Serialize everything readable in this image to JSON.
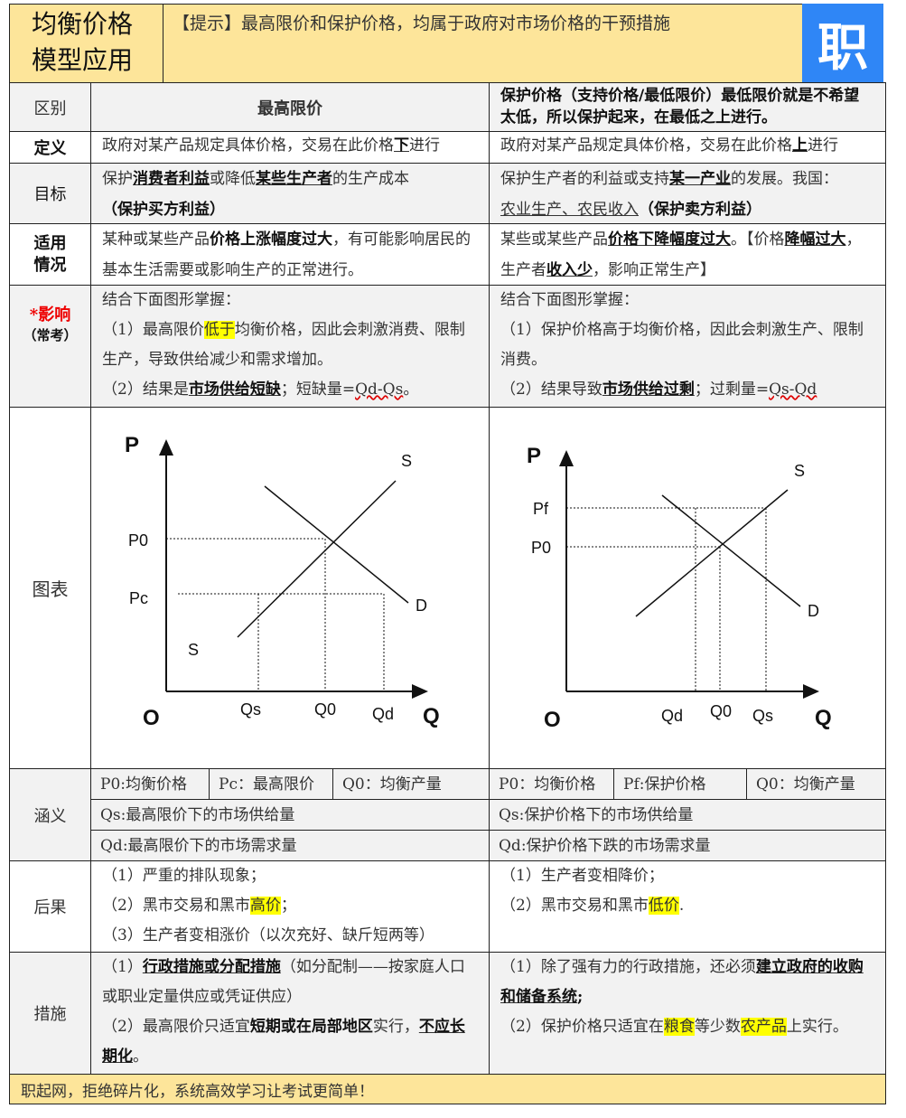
{
  "header": {
    "title_line1": "均衡价格",
    "title_line2": "模型应用",
    "tip": "【提示】最高限价和保护价格，均属于政府对市场价格的干预措施",
    "logo_text": "职",
    "brand_color": "#2f86f6"
  },
  "rows": {
    "head": {
      "label": "区别",
      "col1": "最高限价",
      "col2": "保护价格（支持价格/最低限价）最低限价就是不希望太低，所以保护起来，在最低之上进行。"
    },
    "definition": {
      "label": "定义",
      "col1_a": "政府对某产品规定具体价格，交易在此价格",
      "col1_u": "下",
      "col1_b": "进行",
      "col2_a": "政府对某产品规定具体价格，交易在此价格",
      "col2_u": "上",
      "col2_b": "进行"
    },
    "goal": {
      "label": "目标",
      "c1": [
        "保护",
        "消费者利益",
        "或降低",
        "某些生产者",
        "的生产成本",
        "（保护买方利益）"
      ],
      "c2": [
        "保护生产者的利益或支持",
        "某一产业",
        "的发展。我国：",
        "农业生产、农民收入",
        "（保护卖方利益）"
      ]
    },
    "situation": {
      "label_line1": "适用",
      "label_line2": "情况",
      "c1": [
        "某种或某些产品",
        "价格上涨幅度过大",
        "，有可能影响居民的基本生活需要或影响生产的正常进行。"
      ],
      "c2": [
        "某些或某些产品",
        "价格下降幅度过大",
        "。【价格",
        "降幅过大",
        "，生产者",
        "收入少",
        "，影响正常生产】"
      ]
    },
    "impact": {
      "label": "*影响",
      "label_sub": "（常考）",
      "c1": [
        "结合下面图形掌握：",
        "（1）最高限价",
        "低于",
        "均衡价格，因此会刺激消费、限制生产，导致供给减少和需求增加。",
        "（2）结果是",
        "市场供给短缺",
        "；短缺量=",
        "Qd-Qs",
        "。"
      ],
      "c2": [
        "结合下面图形掌握：",
        "（1）保护价格高于均衡价格，因此会刺激生产、限制消费。",
        "（2）结果导致",
        "市场供给过剩",
        "；过剩量=",
        "Qs-Qd"
      ]
    },
    "chart": {
      "label": "图表",
      "left": {
        "p": "P",
        "q": "Q",
        "o": "O",
        "s_top": "S",
        "d": "D",
        "s_low": "S",
        "p0": "P0",
        "pc": "Pc",
        "qs": "Qs",
        "q0": "Q0",
        "qd": "Qd"
      },
      "right": {
        "p": "P",
        "q": "Q",
        "o": "O",
        "s": "S",
        "d": "D",
        "pf": "Pf",
        "p0": "P0",
        "qd": "Qd",
        "q0": "Q0",
        "qs": "Qs"
      }
    },
    "meaning": {
      "label": "涵义",
      "c1": [
        "P0:均衡价格",
        "Pc：最高限价",
        "Q0：均衡产量",
        "Qs:最高限价下的市场供给量",
        "Qd:最高限价下的市场需求量"
      ],
      "c2": [
        "P0：均衡价格",
        "Pf:保护价格",
        "Q0：均衡产量",
        "Qs:保护价格下的市场供给量",
        "Qd:保护价格下跌的市场需求量"
      ]
    },
    "result": {
      "label": "后果",
      "c1": [
        "（1）严重的排队现象；",
        "（2）黑市交易和黑市",
        "高价",
        "；",
        "（3）生产者变相涨价（以次充好、缺斤短两等）"
      ],
      "c2": [
        "（1）生产者变相降价；",
        "（2）黑市交易和黑市",
        "低价",
        "."
      ]
    },
    "measure": {
      "label": "措施",
      "c1": [
        "（1）",
        "行政措施或分配措施",
        "（如分配制——按家庭人口或职业定量供应或凭证供应）",
        "（2）最高限价只适宜",
        "短期或在局部地区",
        "实行，",
        "不应长期化",
        "。"
      ],
      "c2": [
        "（1）除了强有力的行政措施，还必须",
        "建立政府的收购和储备系统",
        ";",
        "（2）保护价格只适宜在",
        "粮食",
        "等少数",
        "农产品",
        "上实行。"
      ]
    }
  },
  "footer": {
    "text": "职起网，拒绝碎片化，系统高效学习让考试更简单！"
  }
}
